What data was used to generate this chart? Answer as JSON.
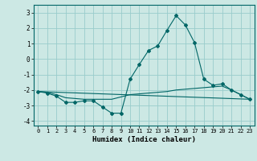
{
  "xlabel": "Humidex (Indice chaleur)",
  "background_color": "#cce8e4",
  "line_color": "#006666",
  "grid_color": "#99cccc",
  "xlim": [
    -0.5,
    23.5
  ],
  "ylim": [
    -4.3,
    3.5
  ],
  "yticks": [
    -4,
    -3,
    -2,
    -1,
    0,
    1,
    2,
    3
  ],
  "xticks": [
    0,
    1,
    2,
    3,
    4,
    5,
    6,
    7,
    8,
    9,
    10,
    11,
    12,
    13,
    14,
    15,
    16,
    17,
    18,
    19,
    20,
    21,
    22,
    23
  ],
  "series_main": [
    [
      0,
      -2.1
    ],
    [
      1,
      -2.2
    ],
    [
      2,
      -2.4
    ],
    [
      3,
      -2.8
    ],
    [
      4,
      -2.8
    ],
    [
      5,
      -2.7
    ],
    [
      6,
      -2.7
    ],
    [
      7,
      -3.1
    ],
    [
      8,
      -3.5
    ],
    [
      9,
      -3.5
    ],
    [
      10,
      -1.3
    ],
    [
      11,
      -0.35
    ],
    [
      12,
      0.55
    ],
    [
      13,
      0.85
    ],
    [
      14,
      1.85
    ],
    [
      15,
      2.8
    ],
    [
      16,
      2.2
    ],
    [
      17,
      1.05
    ],
    [
      18,
      -1.3
    ],
    [
      19,
      -1.7
    ],
    [
      20,
      -1.6
    ],
    [
      21,
      -2.0
    ],
    [
      22,
      -2.3
    ],
    [
      23,
      -2.6
    ]
  ],
  "series_trend": [
    [
      0,
      -2.1
    ],
    [
      1,
      -2.15
    ],
    [
      2,
      -2.3
    ],
    [
      3,
      -2.5
    ],
    [
      4,
      -2.55
    ],
    [
      5,
      -2.6
    ],
    [
      6,
      -2.6
    ],
    [
      7,
      -2.6
    ],
    [
      8,
      -2.6
    ],
    [
      9,
      -2.45
    ],
    [
      10,
      -2.3
    ],
    [
      11,
      -2.25
    ],
    [
      12,
      -2.2
    ],
    [
      13,
      -2.15
    ],
    [
      14,
      -2.1
    ],
    [
      15,
      -2.0
    ],
    [
      16,
      -1.95
    ],
    [
      17,
      -1.9
    ],
    [
      18,
      -1.85
    ],
    [
      19,
      -1.8
    ],
    [
      20,
      -1.75
    ],
    [
      21,
      -2.0
    ],
    [
      22,
      -2.3
    ],
    [
      23,
      -2.6
    ]
  ],
  "series_flat": [
    [
      0,
      -2.1
    ],
    [
      23,
      -2.6
    ]
  ]
}
